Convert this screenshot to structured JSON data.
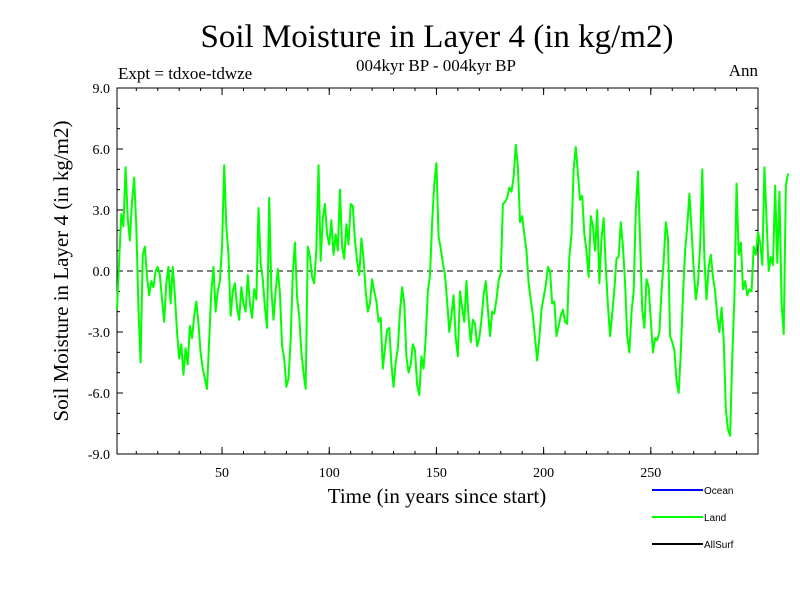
{
  "chart_data": {
    "type": "line",
    "title": "Soil Moisture in Layer 4 (in kg/m2)",
    "subtitle": "004kyr BP - 004kyr BP",
    "experiment_label": "Expt = tdxoe-tdwze",
    "season_label": "Ann",
    "xlabel": "Time (in years since start)",
    "ylabel": "Soil Moisture in Layer 4 (in kg/m2)",
    "xlim": [
      1,
      300
    ],
    "ylim": [
      -9.0,
      9.0
    ],
    "x_ticks": [
      "50",
      "100",
      "150",
      "200",
      "250"
    ],
    "y_ticks": [
      "9.0",
      "6.0",
      "3.0",
      "0.0",
      "-3.0",
      "-6.0",
      "-9.0"
    ],
    "zero_line": true,
    "legend": [
      {
        "name": "Ocean",
        "color": "#0000ff"
      },
      {
        "name": "Land",
        "color": "#00ff00"
      },
      {
        "name": "AllSurf",
        "color": "#000000"
      }
    ],
    "series": [
      {
        "name": "Land",
        "color": "#00ff00",
        "x_start": 1,
        "x_step": 1,
        "values": [
          -1.9,
          0.5,
          2.8,
          2.2,
          5.1,
          2.6,
          1.5,
          3.4,
          4.6,
          2.2,
          -1.8,
          -4.5,
          0.8,
          1.2,
          -0.3,
          -1.2,
          -0.5,
          -0.8,
          0.0,
          0.2,
          -0.2,
          -1.4,
          -2.5,
          -0.6,
          0.2,
          -1.6,
          0.2,
          -1.2,
          -3.0,
          -4.3,
          -3.6,
          -5.1,
          -3.8,
          -4.6,
          -2.7,
          -3.3,
          -2.2,
          -1.5,
          -2.6,
          -4.0,
          -4.8,
          -5.3,
          -5.8,
          -3.4,
          -1.0,
          0.2,
          -2.0,
          -1.0,
          -0.5,
          1.2,
          5.2,
          2.2,
          0.8,
          -2.2,
          -1.0,
          -0.6,
          -1.8,
          -2.4,
          -0.8,
          -1.6,
          -2.0,
          -0.2,
          -1.6,
          -2.3,
          -0.9,
          -1.4,
          3.1,
          0.4,
          -0.4,
          -1.8,
          -2.8,
          3.6,
          -0.9,
          -2.4,
          -1.0,
          0.1,
          -1.1,
          -3.7,
          -4.3,
          -5.7,
          -5.3,
          -3.4,
          -0.1,
          1.4,
          -1.3,
          -2.2,
          -4.0,
          -5.0,
          -5.8,
          1.2,
          0.7,
          -0.3,
          -0.6,
          1.1,
          5.2,
          0.5,
          2.6,
          3.3,
          1.8,
          1.3,
          2.5,
          0.8,
          1.8,
          1.0,
          4.0,
          1.2,
          0.6,
          2.3,
          1.3,
          3.3,
          3.2,
          1.5,
          0.5,
          -0.2,
          1.6,
          0.6,
          -1.0,
          -2.0,
          -1.6,
          -0.4,
          -1.0,
          -1.5,
          -2.5,
          -2.3,
          -4.8,
          -3.8,
          -2.9,
          -2.8,
          -4.6,
          -5.7,
          -4.5,
          -3.8,
          -2.0,
          -0.8,
          -1.6,
          -4.2,
          -5.0,
          -4.6,
          -3.6,
          -3.9,
          -5.6,
          -6.1,
          -4.2,
          -4.8,
          -3.3,
          -1.0,
          -0.2,
          2.4,
          4.3,
          5.3,
          1.7,
          1.1,
          0.4,
          -0.2,
          -1.5,
          -3.0,
          -2.2,
          -1.2,
          -3.3,
          -4.2,
          -1.0,
          -1.8,
          -2.5,
          -0.5,
          -2.3,
          -3.5,
          -2.4,
          -2.6,
          -3.7,
          -3.3,
          -2.4,
          -1.2,
          -0.5,
          -1.9,
          -3.2,
          -2.0,
          -2.1,
          -1.4,
          -0.5,
          -0.1,
          3.3,
          3.4,
          3.6,
          4.1,
          3.9,
          4.6,
          6.2,
          5.1,
          2.4,
          2.7,
          1.8,
          1.0,
          -0.6,
          -1.4,
          -2.2,
          -3.3,
          -4.4,
          -3.3,
          -1.9,
          -1.3,
          -0.7,
          0.2,
          0.0,
          -1.6,
          -1.5,
          -3.2,
          -2.7,
          -2.2,
          -1.9,
          -2.5,
          -2.6,
          0.7,
          1.8,
          5.0,
          6.1,
          4.8,
          3.5,
          3.7,
          1.8,
          1.0,
          -0.3,
          2.7,
          2.2,
          1.0,
          3.0,
          -0.6,
          1.6,
          2.6,
          0.2,
          -1.7,
          -3.2,
          -2.1,
          -0.9,
          0.6,
          0.7,
          2.4,
          1.2,
          -0.6,
          -3.2,
          -4.0,
          -2.0,
          -1.0,
          3.0,
          4.9,
          1.5,
          -1.9,
          -2.8,
          -0.4,
          -0.8,
          -2.4,
          -4.0,
          -3.3,
          -3.4,
          -3.0,
          -1.0,
          0.5,
          2.4,
          1.6,
          -3.2,
          -3.5,
          -3.9,
          -5.4,
          -6.0,
          -4.0,
          -1.2,
          1.0,
          2.2,
          3.8,
          2.0,
          0.1,
          -1.4,
          -0.6,
          1.2,
          5.0,
          0.6,
          -1.4,
          0.2,
          0.8,
          -0.3,
          -1.0,
          -2.2,
          -3.0,
          -1.8,
          -3.4,
          -6.8,
          -7.8,
          -8.1,
          -4.2,
          -1.3,
          4.3,
          0.8,
          1.4,
          -0.9,
          -0.5,
          -1.2,
          -0.9,
          -1.0,
          1.2,
          0.8,
          1.9,
          1.4,
          0.3,
          5.1,
          2.5,
          0.0,
          0.7,
          0.3,
          4.2,
          0.4,
          3.9,
          -1.6,
          -3.1,
          4.2,
          4.8
        ]
      }
    ]
  }
}
